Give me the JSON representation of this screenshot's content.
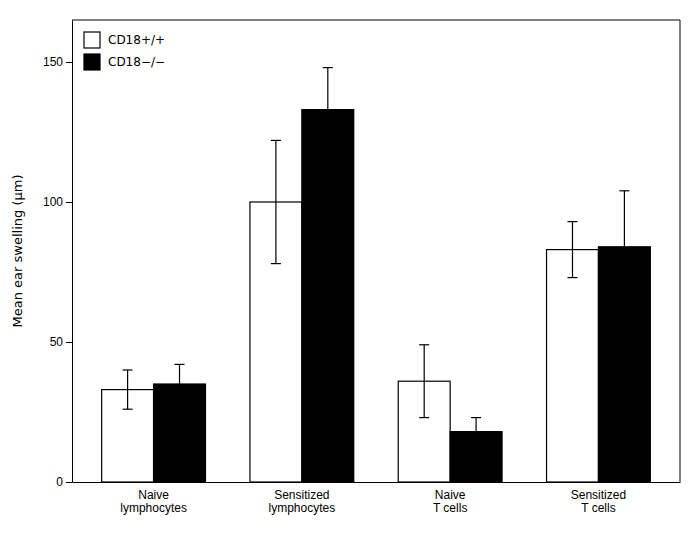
{
  "chart_data": {
    "type": "bar",
    "y_label": "Mean ear swelling (μm)",
    "categories": [
      "Naive\nlymphocytes",
      "Sensitized\nlymphocytes",
      "Naive\nT cells",
      "Sensitized\nT cells"
    ],
    "series": [
      {
        "name": "CD18+/+",
        "color": "white",
        "values": [
          33,
          100,
          36,
          83
        ],
        "errors": [
          7,
          22,
          13,
          10
        ]
      },
      {
        "name": "CD18−/−",
        "color": "black",
        "values": [
          35,
          133,
          18,
          84
        ],
        "errors": [
          7,
          15,
          5,
          20
        ]
      }
    ],
    "ylim": [
      0,
      165
    ],
    "yticks": [
      0,
      50,
      100,
      150
    ],
    "grid": false,
    "legend": "upper left"
  }
}
